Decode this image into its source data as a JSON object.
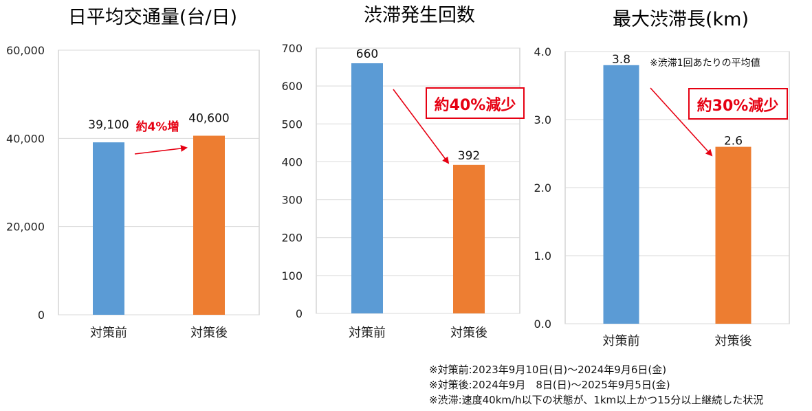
{
  "colors": {
    "before": "#5b9bd5",
    "after": "#ed7d31",
    "accent": "#e60012",
    "grid": "#d9d9d9",
    "frame": "#bfbfbf"
  },
  "chart_data": [
    {
      "type": "bar",
      "title": "日平均交通量(台/日)",
      "categories": [
        "対策前",
        "対策後"
      ],
      "values": [
        39100,
        40600
      ],
      "value_labels": [
        "39,100",
        "40,600"
      ],
      "ylim": [
        0,
        60000
      ],
      "yticks": [
        0,
        20000,
        40000,
        60000
      ],
      "ytick_labels": [
        "0",
        "20,000",
        "40,000",
        "60,000"
      ],
      "grid": true,
      "annotation": "約4%増"
    },
    {
      "type": "bar",
      "title": "渋滞発生回数",
      "categories": [
        "対策前",
        "対策後"
      ],
      "values": [
        660,
        392
      ],
      "value_labels": [
        "660",
        "392"
      ],
      "ylim": [
        0,
        700
      ],
      "yticks": [
        0,
        100,
        200,
        300,
        400,
        500,
        600,
        700
      ],
      "ytick_labels": [
        "0",
        "100",
        "200",
        "300",
        "400",
        "500",
        "600",
        "700"
      ],
      "grid": true,
      "annotation": "約40%減少"
    },
    {
      "type": "bar",
      "title": "最大渋滞長(km)",
      "categories": [
        "対策前",
        "対策後"
      ],
      "values": [
        3.8,
        2.6
      ],
      "value_labels": [
        "3.8",
        "2.6"
      ],
      "ylim": [
        0,
        4
      ],
      "yticks": [
        0,
        1,
        2,
        3,
        4
      ],
      "ytick_labels": [
        "0.0",
        "1.0",
        "2.0",
        "3.0",
        "4.0"
      ],
      "grid": true,
      "annotation": "約30%減少",
      "note": "※渋滞1回あたりの平均値"
    }
  ],
  "footnotes": [
    "※対策前:2023年9月10日(日)～2024年9月6日(金)",
    "※対策後:2024年9月　8日(日)～2025年9月5日(金)",
    "※渋滞:速度40km/h以下の状態が、1km以上かつ15分以上継続した状況"
  ]
}
